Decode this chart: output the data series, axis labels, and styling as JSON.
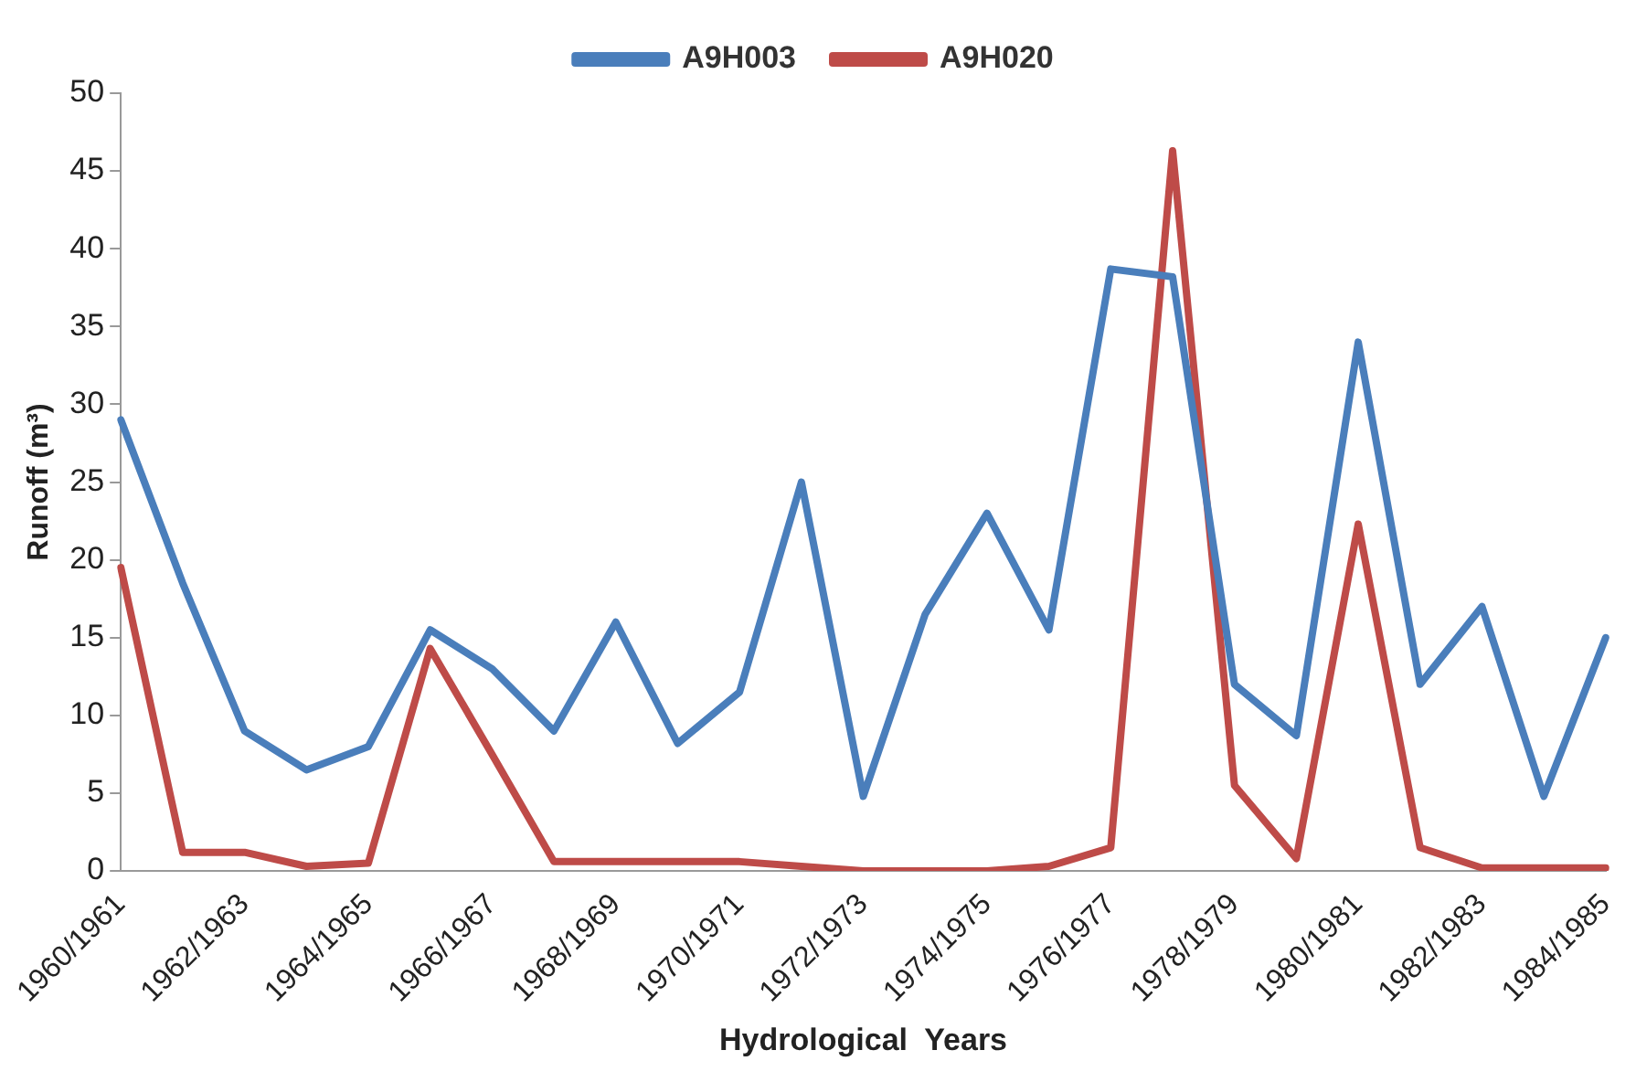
{
  "chart_data": {
    "type": "line",
    "xlabel": "Hydrological  Years",
    "ylabel": "Runoff (m³)",
    "categories": [
      "1960/1961",
      null,
      "1962/1963",
      null,
      "1964/1965",
      null,
      "1966/1967",
      null,
      "1968/1969",
      null,
      "1970/1971",
      null,
      "1972/1973",
      null,
      "1974/1975",
      null,
      "1976/1977",
      null,
      "1978/1979",
      null,
      "1980/1981",
      null,
      "1982/1983",
      null,
      "1984/1985"
    ],
    "series": [
      {
        "name": "A9H003",
        "color": "#4a7ebb",
        "values": [
          29,
          18.5,
          9,
          6.5,
          8,
          15.5,
          13,
          9,
          16,
          8.2,
          11.5,
          25,
          4.8,
          16.5,
          23,
          15.5,
          38.7,
          38.2,
          12,
          8.7,
          34,
          12,
          17,
          4.8,
          15
        ]
      },
      {
        "name": "A9H020",
        "color": "#be4b48",
        "values": [
          19.5,
          1.2,
          1.2,
          0.3,
          0.5,
          14.3,
          7.5,
          0.6,
          0.6,
          0.6,
          0.6,
          0.3,
          0,
          0,
          0,
          0.3,
          1.5,
          46.3,
          5.5,
          0.8,
          22.3,
          1.5,
          0.2,
          0.2,
          0.2
        ]
      }
    ],
    "ylim": [
      0,
      50
    ],
    "yticks": [
      0,
      5,
      10,
      15,
      20,
      25,
      30,
      35,
      40,
      45,
      50
    ],
    "grid": false,
    "legend": "top",
    "marker": "none",
    "line_style": "solid"
  }
}
